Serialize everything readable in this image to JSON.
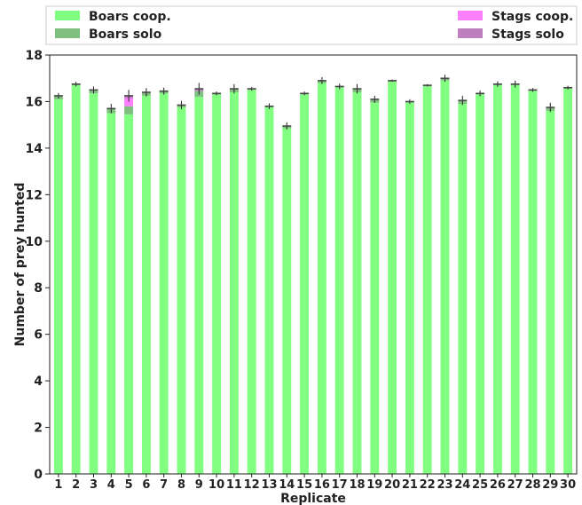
{
  "chart_data": {
    "type": "bar",
    "title": "",
    "xlabel": "Replicate",
    "ylabel": "Number of prey hunted",
    "ylim": [
      0,
      18
    ],
    "yticks": [
      0,
      2,
      4,
      6,
      8,
      10,
      12,
      14,
      16,
      18
    ],
    "grid": false,
    "stacked": true,
    "legend_placement": "top",
    "categories": [
      "1",
      "2",
      "3",
      "4",
      "5",
      "6",
      "7",
      "8",
      "9",
      "10",
      "11",
      "12",
      "13",
      "14",
      "15",
      "16",
      "17",
      "18",
      "19",
      "20",
      "21",
      "22",
      "23",
      "24",
      "25",
      "26",
      "27",
      "28",
      "29",
      "30"
    ],
    "series": [
      {
        "name": "Boars coop.",
        "color": "#80ff80",
        "values": [
          16.1,
          16.7,
          16.35,
          15.5,
          15.45,
          16.25,
          16.35,
          15.75,
          16.2,
          16.3,
          16.4,
          16.5,
          15.75,
          14.85,
          16.3,
          16.8,
          16.6,
          16.4,
          15.95,
          16.85,
          15.95,
          16.65,
          16.9,
          15.9,
          16.3,
          16.7,
          16.7,
          16.45,
          15.6,
          16.55
        ]
      },
      {
        "name": "Boars solo",
        "color": "#7fbf7f",
        "values": [
          0.15,
          0.05,
          0.15,
          0.2,
          0.35,
          0.15,
          0.1,
          0.1,
          0.25,
          0.05,
          0.15,
          0.05,
          0.05,
          0.1,
          0.05,
          0.1,
          0.05,
          0.15,
          0.15,
          0.05,
          0.05,
          0.05,
          0.1,
          0.15,
          0.05,
          0.05,
          0.05,
          0.05,
          0.15,
          0.05
        ]
      },
      {
        "name": "Stags coop.",
        "color": "#ff80ff",
        "values": [
          0,
          0,
          0,
          0,
          0.35,
          0,
          0,
          0,
          0,
          0,
          0,
          0,
          0,
          0,
          0,
          0,
          0,
          0,
          0,
          0,
          0,
          0,
          0,
          0,
          0,
          0,
          0,
          0,
          0,
          0
        ]
      },
      {
        "name": "Stags solo",
        "color": "#bf7fbf",
        "values": [
          0,
          0,
          0,
          0,
          0.1,
          0,
          0,
          0,
          0.1,
          0,
          0,
          0,
          0,
          0,
          0,
          0,
          0,
          0,
          0,
          0,
          0,
          0,
          0,
          0,
          0,
          0,
          0,
          0,
          0,
          0
        ]
      }
    ],
    "error_bars": [
      0.12,
      0.1,
      0.15,
      0.2,
      0.25,
      0.18,
      0.15,
      0.18,
      0.25,
      0.08,
      0.2,
      0.08,
      0.12,
      0.15,
      0.08,
      0.15,
      0.12,
      0.2,
      0.15,
      0.05,
      0.1,
      0.05,
      0.15,
      0.2,
      0.12,
      0.12,
      0.15,
      0.08,
      0.2,
      0.08
    ]
  }
}
